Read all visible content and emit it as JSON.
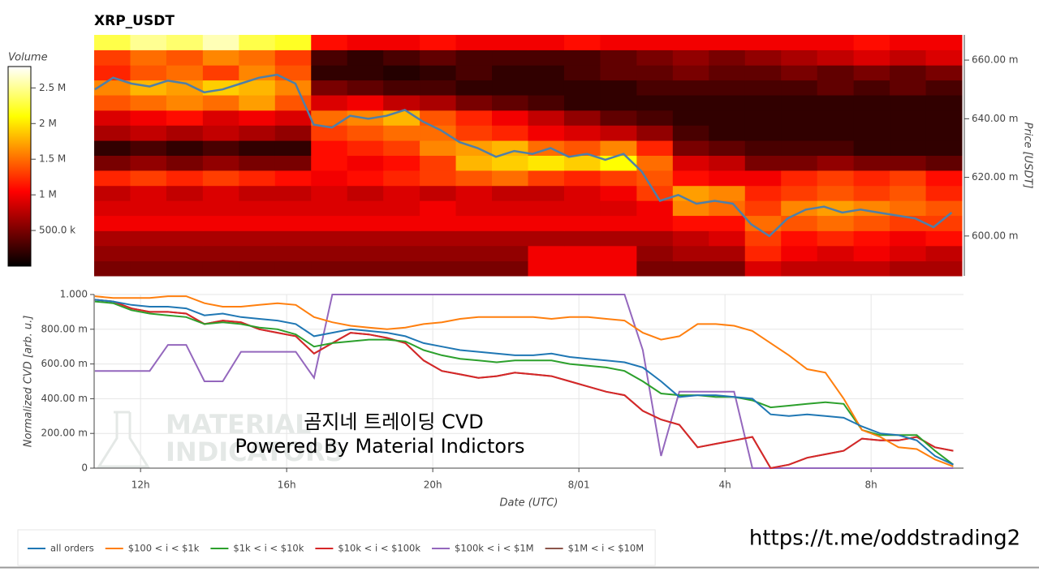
{
  "chart_data": [
    {
      "type": "heatmap",
      "title": "XRP_USDT",
      "xlim": [
        10.73,
        34.53
      ],
      "ylim": [
        0.5864,
        0.6686
      ],
      "y_label": "Price [USDT]",
      "yticks": [
        {
          "value": 0.6,
          "label": "600.00 m"
        },
        {
          "value": 0.62,
          "label": "620.00 m"
        },
        {
          "value": 0.64,
          "label": "640.00 m"
        },
        {
          "value": 0.66,
          "label": "660.00 m"
        }
      ],
      "x_bins": [
        10.73,
        11.72,
        12.71,
        13.71,
        14.7,
        15.69,
        16.68,
        17.67,
        18.66,
        19.66,
        20.65,
        21.64,
        22.63,
        23.62,
        24.61,
        25.61,
        26.6,
        27.59,
        28.58,
        29.57,
        30.56,
        31.56,
        32.55,
        33.54,
        34.53
      ],
      "y_bins": [
        0.5864,
        0.5915,
        0.5967,
        0.6018,
        0.607,
        0.6121,
        0.6172,
        0.6224,
        0.6275,
        0.6326,
        0.6378,
        0.6429,
        0.6481,
        0.6532,
        0.6583,
        0.6635,
        0.6686
      ],
      "z": [
        [
          500000,
          500000,
          500000,
          500000,
          500000,
          500000,
          500000,
          500000,
          500000,
          500000,
          500000,
          500000,
          1000000,
          1000000,
          1000000,
          500000,
          500000,
          500000,
          900000,
          800000,
          800000,
          800000,
          700000,
          700000
        ],
        [
          600000,
          600000,
          600000,
          600000,
          600000,
          600000,
          600000,
          600000,
          600000,
          600000,
          600000,
          600000,
          1000000,
          1000000,
          1000000,
          600000,
          700000,
          700000,
          1200000,
          1000000,
          900000,
          1000000,
          900000,
          800000
        ],
        [
          700000,
          700000,
          700000,
          700000,
          700000,
          700000,
          700000,
          700000,
          700000,
          700000,
          700000,
          700000,
          700000,
          700000,
          700000,
          700000,
          800000,
          900000,
          1300000,
          1100000,
          1200000,
          1100000,
          1000000,
          1100000
        ],
        [
          1000000,
          1000000,
          1000000,
          1000000,
          1000000,
          1000000,
          1000000,
          1000000,
          1000000,
          1000000,
          1000000,
          1000000,
          1000000,
          1000000,
          1000000,
          1000000,
          1100000,
          1100000,
          1500000,
          1400000,
          1500000,
          1400000,
          1300000,
          1300000
        ],
        [
          900000,
          900000,
          900000,
          900000,
          900000,
          900000,
          900000,
          900000,
          900000,
          1000000,
          900000,
          900000,
          900000,
          900000,
          900000,
          1000000,
          1600000,
          1500000,
          1300000,
          1600000,
          1700000,
          1600000,
          1500000,
          1400000
        ],
        [
          800000,
          900000,
          800000,
          900000,
          800000,
          800000,
          900000,
          800000,
          900000,
          800000,
          900000,
          800000,
          800000,
          900000,
          1000000,
          1300000,
          1700000,
          1600000,
          1200000,
          1300000,
          1400000,
          1300000,
          1400000,
          1200000
        ],
        [
          1200000,
          1300000,
          1200000,
          1300000,
          1200000,
          1100000,
          1000000,
          1100000,
          1200000,
          1300000,
          1400000,
          1500000,
          1300000,
          1200000,
          1300000,
          1400000,
          1100000,
          1000000,
          1000000,
          1200000,
          1300000,
          1200000,
          1300000,
          1100000
        ],
        [
          500000,
          600000,
          500000,
          600000,
          500000,
          500000,
          1100000,
          1000000,
          1100000,
          1300000,
          1800000,
          1900000,
          2000000,
          1900000,
          2100000,
          1500000,
          900000,
          800000,
          500000,
          500000,
          600000,
          500000,
          500000,
          400000
        ],
        [
          200000,
          300000,
          200000,
          300000,
          200000,
          200000,
          1100000,
          1200000,
          1300000,
          1600000,
          1700000,
          1800000,
          1500000,
          1400000,
          1600000,
          1200000,
          500000,
          400000,
          300000,
          300000,
          300000,
          200000,
          200000,
          200000
        ],
        [
          700000,
          800000,
          700000,
          800000,
          700000,
          600000,
          1300000,
          1400000,
          1500000,
          1500000,
          1300000,
          1200000,
          1000000,
          900000,
          800000,
          600000,
          300000,
          200000,
          200000,
          200000,
          200000,
          200000,
          200000,
          200000
        ],
        [
          900000,
          1000000,
          1100000,
          900000,
          1000000,
          900000,
          1500000,
          1600000,
          1800000,
          1400000,
          1200000,
          1000000,
          800000,
          600000,
          400000,
          300000,
          200000,
          200000,
          200000,
          200000,
          200000,
          200000,
          200000,
          200000
        ],
        [
          1400000,
          1500000,
          1600000,
          1500000,
          1700000,
          1400000,
          900000,
          1000000,
          800000,
          700000,
          500000,
          400000,
          300000,
          200000,
          200000,
          200000,
          200000,
          200000,
          200000,
          200000,
          200000,
          200000,
          200000,
          200000
        ],
        [
          1600000,
          1800000,
          1700000,
          1900000,
          1800000,
          1600000,
          500000,
          400000,
          300000,
          300000,
          200000,
          200000,
          200000,
          200000,
          200000,
          300000,
          300000,
          300000,
          300000,
          300000,
          400000,
          300000,
          400000,
          300000
        ],
        [
          1200000,
          1400000,
          1500000,
          1300000,
          1600000,
          1400000,
          200000,
          200000,
          150000,
          200000,
          300000,
          200000,
          200000,
          300000,
          400000,
          400000,
          500000,
          400000,
          400000,
          500000,
          400000,
          500000,
          400000,
          500000
        ],
        [
          1300000,
          1500000,
          1400000,
          1600000,
          1500000,
          1300000,
          300000,
          200000,
          300000,
          400000,
          300000,
          300000,
          300000,
          300000,
          400000,
          500000,
          600000,
          500000,
          600000,
          700000,
          800000,
          900000,
          800000,
          900000
        ],
        [
          2300000,
          2500000,
          2400000,
          2600000,
          2300000,
          2200000,
          1100000,
          1000000,
          1000000,
          1100000,
          1000000,
          1000000,
          1000000,
          1100000,
          1000000,
          1000000,
          1000000,
          1000000,
          1000000,
          1000000,
          1000000,
          1100000,
          1000000,
          1000000
        ]
      ],
      "colorbar": {
        "title": "Volume",
        "clim": [
          0,
          2800000
        ],
        "ticks": [
          {
            "value": 500000,
            "label": "500.0 k"
          },
          {
            "value": 1000000,
            "label": "1 M"
          },
          {
            "value": 1500000,
            "label": "1.5 M"
          },
          {
            "value": 2000000,
            "label": "2 M"
          },
          {
            "value": 2500000,
            "label": "2.5 M"
          }
        ]
      },
      "price_line": {
        "color": "#4f7fa8",
        "x": [
          10.75,
          11.25,
          11.75,
          12.25,
          12.75,
          13.25,
          13.75,
          14.25,
          14.75,
          15.25,
          15.75,
          16.25,
          16.75,
          17.25,
          17.75,
          18.25,
          18.75,
          19.25,
          19.75,
          20.25,
          20.75,
          21.25,
          21.75,
          22.25,
          22.75,
          23.25,
          23.75,
          24.25,
          24.75,
          25.25,
          25.75,
          26.25,
          26.75,
          27.25,
          27.75,
          28.25,
          28.75,
          29.25,
          29.75,
          30.25,
          30.75,
          31.25,
          31.75,
          32.25,
          32.75,
          33.25,
          33.75,
          34.25
        ],
        "values": [
          0.65,
          0.654,
          0.652,
          0.651,
          0.653,
          0.652,
          0.649,
          0.65,
          0.652,
          0.654,
          0.655,
          0.652,
          0.638,
          0.637,
          0.641,
          0.64,
          0.641,
          0.643,
          0.639,
          0.636,
          0.632,
          0.63,
          0.627,
          0.629,
          0.628,
          0.63,
          0.627,
          0.628,
          0.626,
          0.628,
          0.622,
          0.612,
          0.614,
          0.611,
          0.612,
          0.611,
          0.604,
          0.6,
          0.606,
          0.609,
          0.61,
          0.608,
          0.609,
          0.608,
          0.607,
          0.606,
          0.603,
          0.608
        ]
      }
    },
    {
      "type": "line",
      "x_label": "Date (UTC)",
      "y_label": "Normalized CVD [arb. u.]",
      "xlim": [
        10.73,
        34.53
      ],
      "ylim": [
        0,
        1
      ],
      "xticks": [
        {
          "value": 12,
          "label": "12h"
        },
        {
          "value": 16,
          "label": "16h"
        },
        {
          "value": 20,
          "label": "20h"
        },
        {
          "value": 24,
          "label": "8/01"
        },
        {
          "value": 28,
          "label": "4h"
        },
        {
          "value": 32,
          "label": "8h"
        }
      ],
      "yticks": [
        0,
        {
          "value": 0.2,
          "label": "200.00 m"
        },
        {
          "value": 0.4,
          "label": "400.00 m"
        },
        {
          "value": 0.6,
          "label": "600.00 m"
        },
        {
          "value": 0.8,
          "label": "800.00 m"
        },
        {
          "value": 1,
          "label": "1.000"
        }
      ],
      "grid": true,
      "legend": "bottom-left",
      "x": [
        10.75,
        11.25,
        11.75,
        12.25,
        12.75,
        13.25,
        13.75,
        14.25,
        14.75,
        15.25,
        15.75,
        16.25,
        16.75,
        17.25,
        17.75,
        18.25,
        18.75,
        19.25,
        19.75,
        20.25,
        20.75,
        21.25,
        21.75,
        22.25,
        22.75,
        23.25,
        23.75,
        24.25,
        24.75,
        25.25,
        25.75,
        26.25,
        26.75,
        27.25,
        27.75,
        28.25,
        28.75,
        29.25,
        29.75,
        30.25,
        30.75,
        31.25,
        31.75,
        32.25,
        32.75,
        33.25,
        33.75,
        34.25
      ],
      "series": [
        {
          "name": "all orders",
          "color": "#1f77b4",
          "values": [
            0.97,
            0.96,
            0.94,
            0.93,
            0.93,
            0.92,
            0.88,
            0.89,
            0.87,
            0.86,
            0.85,
            0.83,
            0.76,
            0.78,
            0.8,
            0.79,
            0.78,
            0.76,
            0.72,
            0.7,
            0.68,
            0.67,
            0.66,
            0.65,
            0.65,
            0.66,
            0.64,
            0.63,
            0.62,
            0.61,
            0.58,
            0.5,
            0.41,
            0.42,
            0.42,
            0.41,
            0.4,
            0.31,
            0.3,
            0.31,
            0.3,
            0.29,
            0.24,
            0.2,
            0.19,
            0.16,
            0.07,
            0.02
          ]
        },
        {
          "name": "$100 < i < $1k",
          "color": "#ff7f0e",
          "values": [
            0.99,
            0.98,
            0.98,
            0.98,
            0.99,
            0.99,
            0.95,
            0.93,
            0.93,
            0.94,
            0.95,
            0.94,
            0.87,
            0.84,
            0.82,
            0.81,
            0.8,
            0.81,
            0.83,
            0.84,
            0.86,
            0.87,
            0.87,
            0.87,
            0.87,
            0.86,
            0.87,
            0.87,
            0.86,
            0.85,
            0.78,
            0.74,
            0.76,
            0.83,
            0.83,
            0.82,
            0.79,
            0.72,
            0.65,
            0.57,
            0.55,
            0.4,
            0.22,
            0.18,
            0.12,
            0.11,
            0.05,
            0.01
          ]
        },
        {
          "name": "$1k < i < $10k",
          "color": "#2ca02c",
          "values": [
            0.96,
            0.95,
            0.91,
            0.89,
            0.88,
            0.87,
            0.83,
            0.84,
            0.83,
            0.81,
            0.8,
            0.77,
            0.7,
            0.72,
            0.73,
            0.74,
            0.74,
            0.73,
            0.68,
            0.65,
            0.63,
            0.62,
            0.61,
            0.62,
            0.62,
            0.62,
            0.6,
            0.59,
            0.58,
            0.56,
            0.5,
            0.43,
            0.42,
            0.42,
            0.41,
            0.41,
            0.39,
            0.35,
            0.36,
            0.37,
            0.38,
            0.37,
            0.22,
            0.19,
            0.19,
            0.19,
            0.1,
            0.02
          ]
        },
        {
          "name": "$10k < i < $100k",
          "color": "#d62728",
          "values": [
            0.97,
            0.96,
            0.92,
            0.9,
            0.9,
            0.89,
            0.83,
            0.85,
            0.84,
            0.8,
            0.78,
            0.76,
            0.66,
            0.72,
            0.78,
            0.77,
            0.75,
            0.72,
            0.62,
            0.56,
            0.54,
            0.52,
            0.53,
            0.55,
            0.54,
            0.53,
            0.5,
            0.47,
            0.44,
            0.42,
            0.33,
            0.28,
            0.25,
            0.12,
            0.14,
            0.16,
            0.18,
            0.0,
            0.02,
            0.06,
            0.08,
            0.1,
            0.17,
            0.16,
            0.16,
            0.18,
            0.12,
            0.1
          ]
        },
        {
          "name": "$100k < i < $1M",
          "color": "#9467bd",
          "values": [
            0.56,
            0.56,
            0.56,
            0.56,
            0.71,
            0.71,
            0.5,
            0.5,
            0.67,
            0.67,
            0.67,
            0.67,
            0.52,
            1,
            1,
            1,
            1,
            1,
            1,
            1,
            1,
            1,
            1,
            1,
            1,
            1,
            1,
            1,
            1,
            1,
            0.68,
            0.07,
            0.44,
            0.44,
            0.44,
            0.44,
            0,
            0,
            0,
            0,
            0,
            0,
            0,
            0,
            0,
            0,
            0,
            0
          ]
        },
        {
          "name": "$1M < i < $10M",
          "color": "#8c564b",
          "values": [
            0.97,
            0.96,
            0.92,
            0.9,
            0.9,
            0.89,
            0.83,
            0.85,
            0.84,
            0.8,
            0.78,
            0.76,
            0.66,
            0.72,
            0.78,
            0.77,
            0.75,
            0.72,
            0.62,
            0.56,
            0.54,
            0.52,
            0.53,
            0.55,
            0.54,
            0.53,
            0.5,
            0.47,
            0.44,
            0.42,
            0.33,
            0.28,
            0.25,
            0.12,
            0.14,
            0.16,
            0.18,
            0.0,
            0.02,
            0.06,
            0.08,
            0.1,
            0.17,
            0.16,
            0.16,
            0.18,
            0.12,
            0.1
          ]
        }
      ],
      "watermark": [
        "MATERIAL",
        "INDICATORS"
      ],
      "annotations": [
        "곰지네 트레이딩 CVD",
        "Powered By Material Indictors"
      ]
    }
  ],
  "footer_url": "https://t.me/oddstrading2"
}
